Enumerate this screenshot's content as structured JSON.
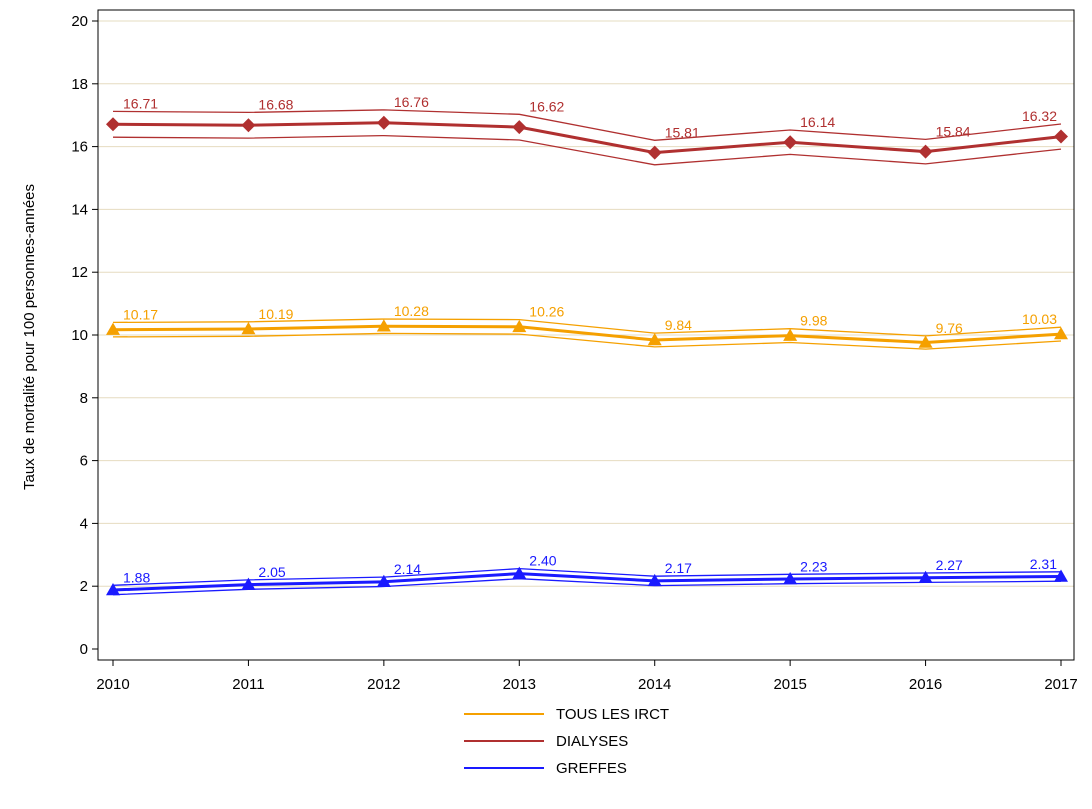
{
  "chart_data": {
    "type": "line",
    "ylabel": "Taux de mortalité pour 100 personnes-années",
    "xlabel": "",
    "ylim": [
      0,
      20
    ],
    "yticks": [
      0,
      2,
      4,
      6,
      8,
      10,
      12,
      14,
      16,
      18,
      20
    ],
    "x": [
      "2010",
      "2011",
      "2012",
      "2013",
      "2014",
      "2015",
      "2016",
      "2017"
    ],
    "grid": "horizontal",
    "legend_position": "bottom",
    "series": [
      {
        "name": "TOUS LES IRCT",
        "color": "#f5a000",
        "marker": "triangle",
        "values": [
          10.17,
          10.19,
          10.28,
          10.26,
          9.84,
          9.98,
          9.76,
          10.03
        ],
        "labels": [
          "10.17",
          "10.19",
          "10.28",
          "10.26",
          "9.84",
          "9.98",
          "9.76",
          "10.03"
        ],
        "ci_upper": [
          10.4,
          10.42,
          10.51,
          10.49,
          10.06,
          10.2,
          9.97,
          10.25
        ],
        "ci_lower": [
          9.94,
          9.96,
          10.05,
          10.03,
          9.62,
          9.76,
          9.55,
          9.81
        ]
      },
      {
        "name": "DIALYSES",
        "color": "#b03030",
        "marker": "diamond",
        "values": [
          16.71,
          16.68,
          16.76,
          16.62,
          15.81,
          16.14,
          15.84,
          16.32
        ],
        "labels": [
          "16.71",
          "16.68",
          "16.76",
          "16.62",
          "15.81",
          "16.14",
          "15.84",
          "16.32"
        ],
        "ci_upper": [
          17.12,
          17.09,
          17.17,
          17.03,
          16.2,
          16.53,
          16.23,
          16.72
        ],
        "ci_lower": [
          16.3,
          16.27,
          16.35,
          16.21,
          15.42,
          15.75,
          15.45,
          15.92
        ]
      },
      {
        "name": "GREFFES",
        "color": "#1a1aff",
        "marker": "triangle",
        "values": [
          1.88,
          2.05,
          2.14,
          2.4,
          2.17,
          2.23,
          2.27,
          2.31
        ],
        "labels": [
          "1.88",
          "2.05",
          "2.14",
          "2.40",
          "2.17",
          "2.23",
          "2.27",
          "2.31"
        ],
        "ci_upper": [
          2.03,
          2.2,
          2.29,
          2.56,
          2.32,
          2.38,
          2.42,
          2.46
        ],
        "ci_lower": [
          1.73,
          1.9,
          1.99,
          2.24,
          2.02,
          2.08,
          2.12,
          2.16
        ]
      }
    ]
  }
}
